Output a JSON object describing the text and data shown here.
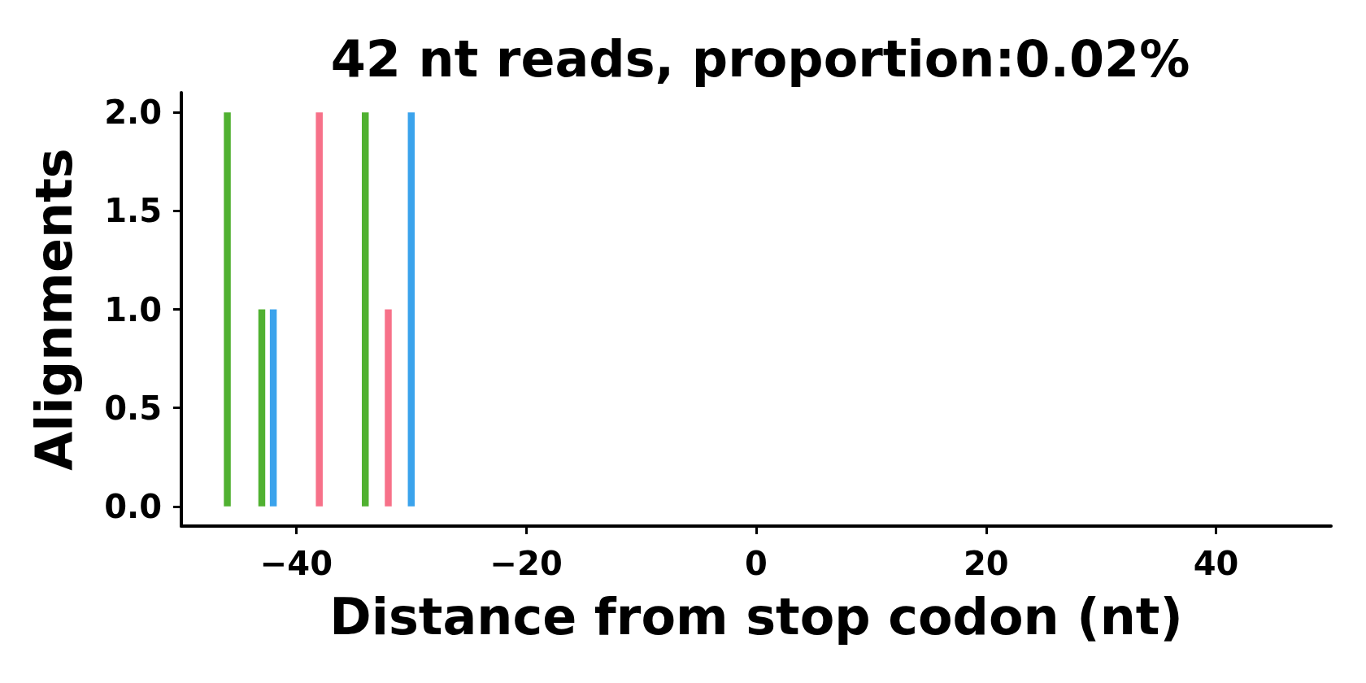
{
  "chart_data": {
    "type": "bar",
    "title": "42 nt reads, proportion:0.02%",
    "xlabel": "Distance from stop codon (nt)",
    "ylabel": "Alignments",
    "series": [
      {
        "color": "#50b131",
        "x": [
          -46,
          -43,
          -34
        ],
        "values": [
          2,
          1,
          2
        ]
      },
      {
        "color": "#f77189",
        "x": [
          -38,
          -32
        ],
        "values": [
          2,
          1
        ]
      },
      {
        "color": "#3ba3ec",
        "x": [
          -42,
          -30
        ],
        "values": [
          1,
          2
        ]
      }
    ],
    "xlim": [
      -50,
      50
    ],
    "xticks": [
      {
        "value": -40,
        "label": "−40"
      },
      {
        "value": -20,
        "label": "−20"
      },
      0,
      20,
      40
    ],
    "ylim": [
      -0.1,
      2.1
    ],
    "yticks": [
      {
        "value": 0,
        "label": "0.0"
      },
      {
        "value": 0.5,
        "label": "0.5"
      },
      {
        "value": 1,
        "label": "1.0"
      },
      {
        "value": 1.5,
        "label": "1.5"
      },
      {
        "value": 2,
        "label": "2.0"
      }
    ],
    "grid": false
  }
}
